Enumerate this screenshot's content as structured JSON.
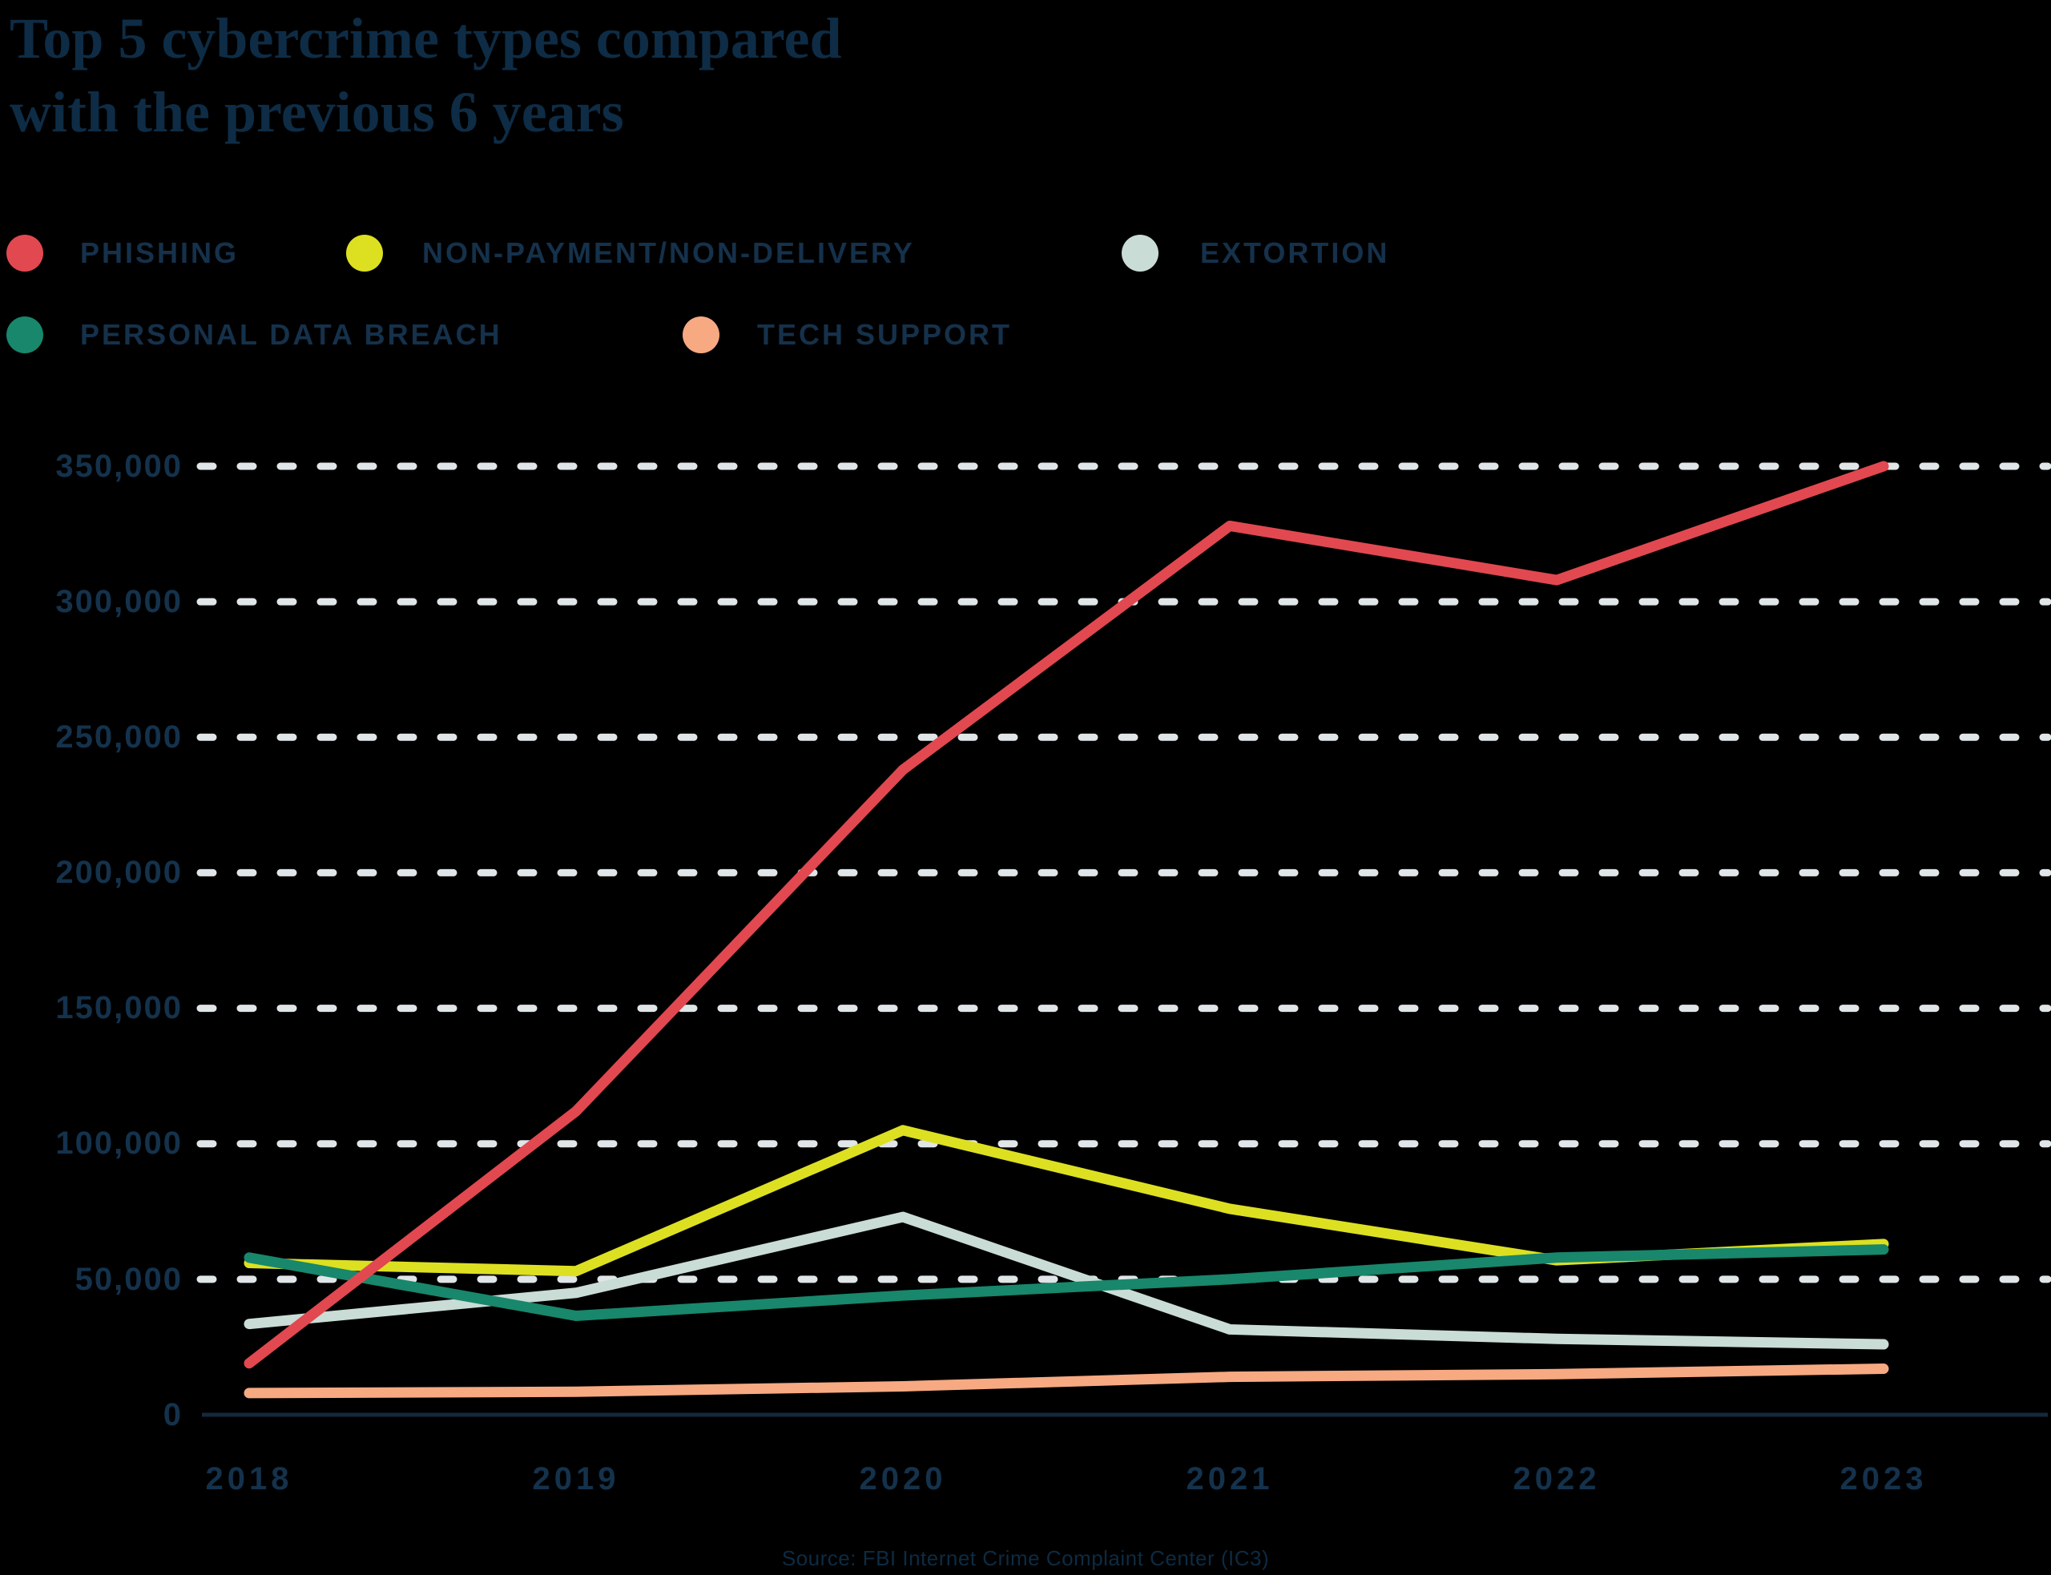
{
  "chart_data": {
    "type": "line",
    "title": "Top 5 cybercrime types compared\nwith the previous 6 years",
    "categories": [
      "2018",
      "2019",
      "2020",
      "2021",
      "2022",
      "2023"
    ],
    "series": [
      {
        "name": "PHISHING",
        "color": "#e24850",
        "values": [
          19000,
          112000,
          238000,
          328000,
          308000,
          350000
        ]
      },
      {
        "name": "NON-PAYMENT/NON-DELIVERY",
        "color": "#dde021",
        "values": [
          56000,
          53000,
          105000,
          76000,
          57000,
          63000
        ]
      },
      {
        "name": "EXTORTION",
        "color": "#c9dcd5",
        "values": [
          33500,
          45000,
          73000,
          31500,
          28000,
          26000
        ]
      },
      {
        "name": "PERSONAL DATA BREACH",
        "color": "#18876b",
        "values": [
          58000,
          36500,
          44000,
          50000,
          58000,
          61000
        ]
      },
      {
        "name": "TECH SUPPORT",
        "color": "#f7a982",
        "values": [
          8000,
          8500,
          10500,
          14000,
          15000,
          17000
        ]
      }
    ],
    "ylim": [
      0,
      350000
    ],
    "ytick_step": 50000,
    "ytick_labels": [
      "350,000",
      "300,000",
      "250,000",
      "200,000",
      "150,000",
      "100,000",
      "50,000",
      "0"
    ],
    "grid": "horizontal-dashed",
    "legend_position": "top-left, two rows",
    "colors": {
      "background": "#000000",
      "grid": "#e0e5e8",
      "axis": "#14293c",
      "text": "#14324c"
    },
    "source": "Source: FBI Internet Crime Complaint Center (IC3)"
  }
}
